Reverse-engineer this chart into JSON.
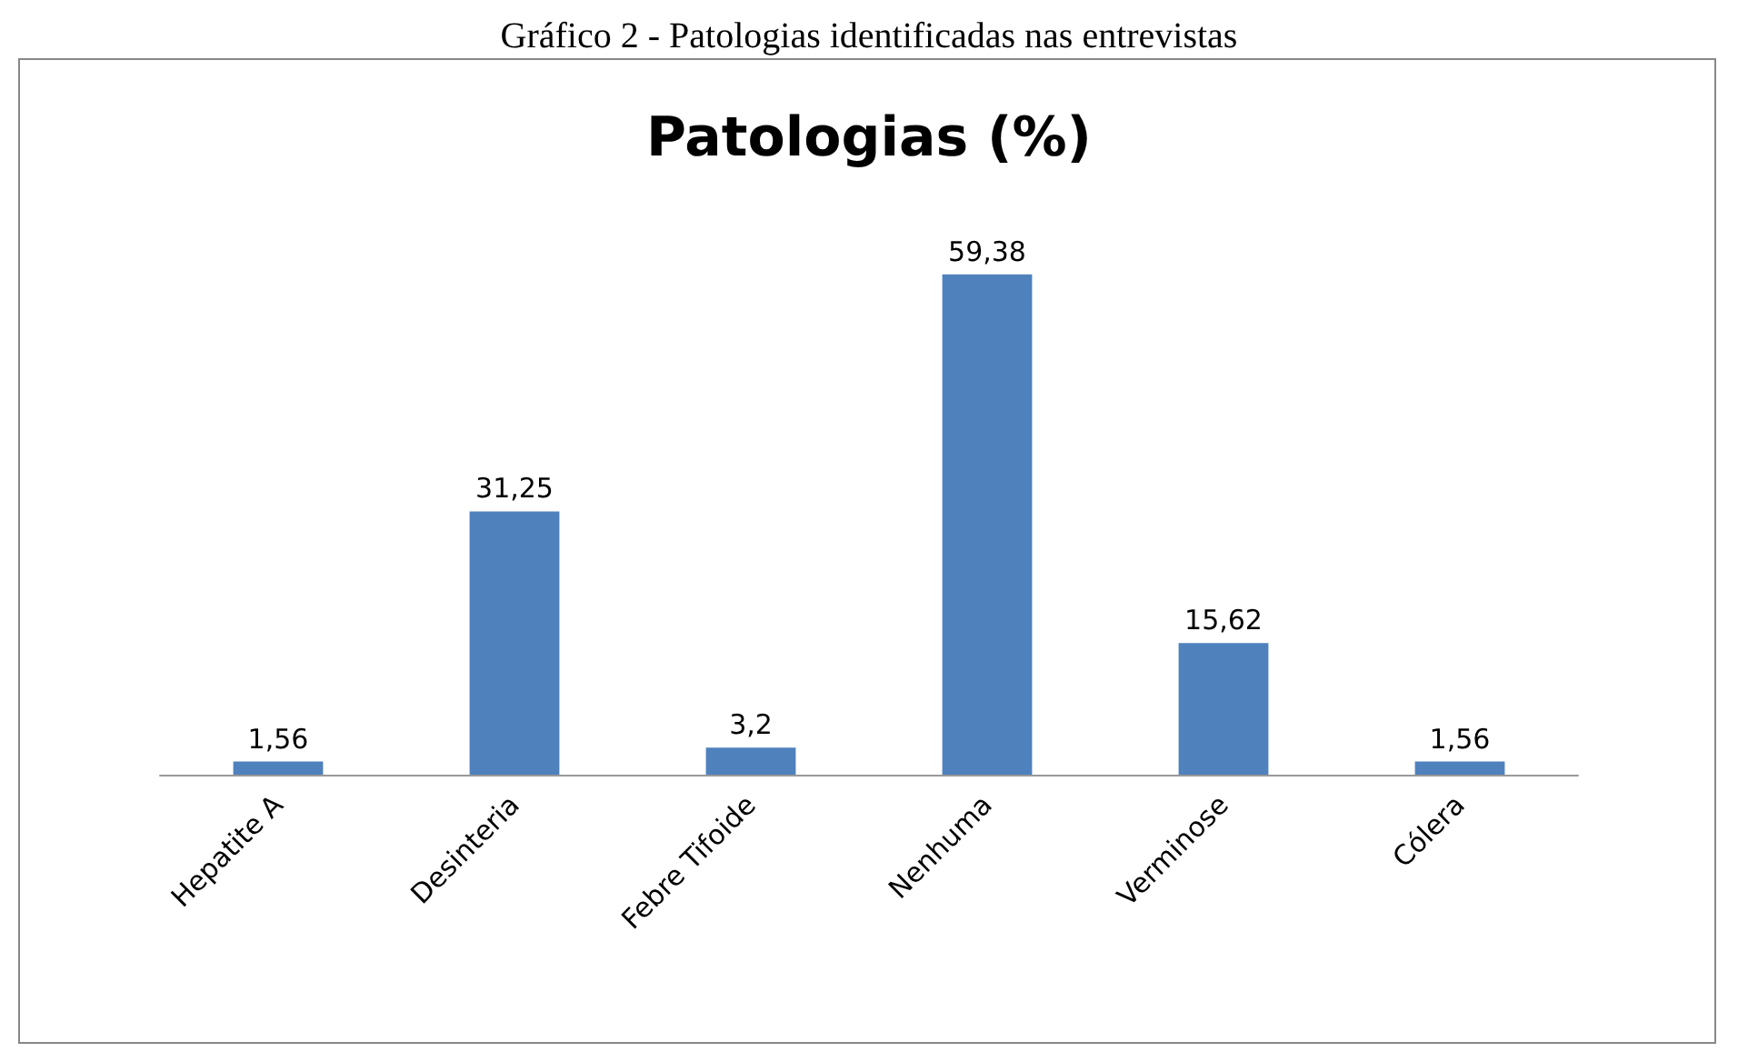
{
  "chart_data": {
    "type": "bar",
    "title": "Patologias (%)",
    "annotations": [
      "Gráfico 2 - Patologias identificadas nas entrevistas"
    ],
    "categories": [
      "Hepatite A",
      "Desinteria",
      "Febre Tifoide",
      "Nenhuma",
      "Verminose",
      "Cólera"
    ],
    "values": [
      1.56,
      31.25,
      3.2,
      59.38,
      15.62,
      1.56
    ],
    "value_labels": [
      "1,56",
      "31,25",
      "3,2",
      "59,38",
      "15,62",
      "1,56"
    ],
    "color": "#4f81bd"
  }
}
